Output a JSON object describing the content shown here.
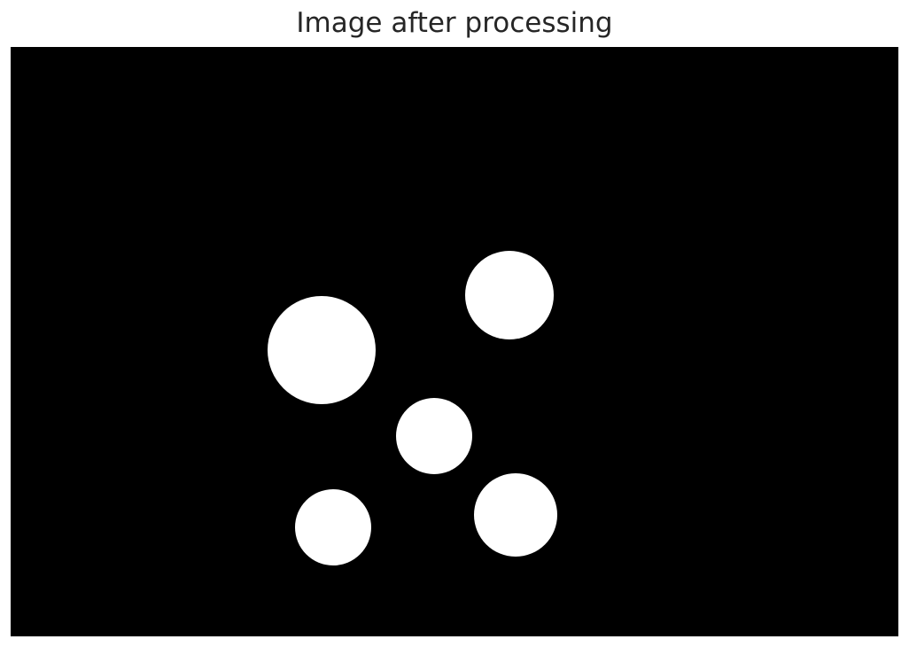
{
  "figure": {
    "title": "Image after processing"
  },
  "image": {
    "background_color": "#000000",
    "blob_color": "#ffffff"
  }
}
